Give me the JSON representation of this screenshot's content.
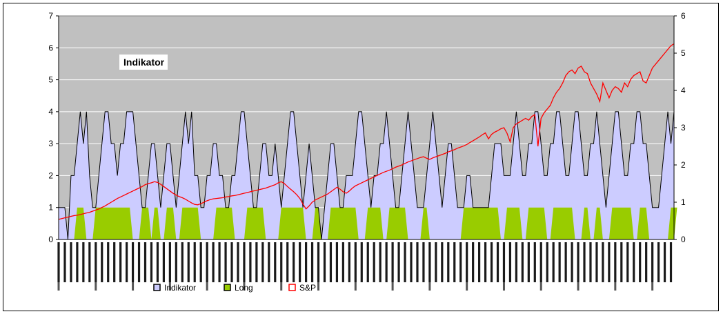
{
  "chart_data": {
    "type": "area",
    "title": "Indikator",
    "x_points": 200,
    "y_left_lim": [
      0,
      7
    ],
    "y_left_ticks": [
      "0",
      "1",
      "2",
      "3",
      "4",
      "5",
      "6",
      "7"
    ],
    "y_right_lim": [
      0,
      6
    ],
    "y_right_ticks": [
      "0",
      "1",
      "2",
      "3",
      "4",
      "5",
      "6"
    ],
    "grid": true,
    "legend_position": "bottom",
    "colors": {
      "plot_background": "#c0c0c0",
      "indikator_fill": "#ccccff",
      "indikator_line": "#000000",
      "long_fill": "#99cc00",
      "sp_line": "#ff0000",
      "grid": "#ffffff"
    },
    "series": [
      {
        "name": "Indikator",
        "type": "area",
        "axis": "left",
        "values": [
          1,
          1,
          1,
          0,
          2,
          2,
          3,
          4,
          3,
          4,
          2,
          1,
          1,
          2,
          3,
          4,
          4,
          3,
          3,
          2,
          3,
          3,
          4,
          4,
          4,
          3,
          2,
          1,
          1,
          2,
          3,
          3,
          2,
          1,
          2,
          3,
          3,
          2,
          1,
          2,
          3,
          4,
          3,
          4,
          2,
          2,
          1,
          1,
          2,
          2,
          3,
          3,
          2,
          2,
          1,
          1,
          2,
          2,
          3,
          4,
          4,
          3,
          2,
          1,
          1,
          2,
          3,
          3,
          2,
          2,
          3,
          2,
          1,
          2,
          3,
          4,
          4,
          3,
          2,
          1,
          2,
          3,
          2,
          1,
          1,
          0,
          1,
          2,
          3,
          3,
          2,
          1,
          1,
          2,
          2,
          2,
          3,
          4,
          4,
          3,
          2,
          1,
          2,
          2,
          3,
          3,
          4,
          3,
          2,
          1,
          1,
          2,
          3,
          4,
          3,
          2,
          1,
          1,
          1,
          2,
          3,
          4,
          3,
          2,
          1,
          2,
          3,
          3,
          2,
          1,
          1,
          1,
          2,
          2,
          1,
          1,
          1,
          1,
          1,
          1,
          2,
          3,
          3,
          3,
          2,
          2,
          2,
          3,
          4,
          3,
          2,
          2,
          3,
          3,
          4,
          4,
          3,
          2,
          2,
          3,
          3,
          4,
          4,
          3,
          2,
          2,
          3,
          4,
          4,
          3,
          2,
          2,
          3,
          3,
          4,
          3,
          2,
          1,
          2,
          3,
          4,
          4,
          3,
          2,
          2,
          3,
          3,
          4,
          4,
          3,
          3,
          2,
          1,
          1,
          1,
          2,
          3,
          4,
          3,
          4
        ]
      },
      {
        "name": "Long",
        "type": "area",
        "axis": "left",
        "values": [
          0,
          0,
          0,
          0,
          0,
          0,
          1,
          1,
          1,
          0,
          0,
          0,
          1,
          1,
          1,
          1,
          1,
          1,
          1,
          1,
          1,
          1,
          1,
          1,
          0,
          0,
          0,
          1,
          1,
          1,
          0,
          1,
          1,
          0,
          0,
          1,
          1,
          1,
          0,
          0,
          1,
          1,
          1,
          1,
          1,
          1,
          0,
          0,
          0,
          0,
          0,
          1,
          1,
          1,
          1,
          1,
          1,
          0,
          0,
          0,
          0,
          1,
          1,
          1,
          1,
          1,
          1,
          0,
          0,
          0,
          0,
          0,
          1,
          1,
          1,
          1,
          1,
          1,
          1,
          1,
          0,
          0,
          0,
          1,
          1,
          0,
          0,
          0,
          1,
          1,
          1,
          1,
          1,
          1,
          1,
          1,
          1,
          0,
          0,
          0,
          1,
          1,
          1,
          1,
          1,
          0,
          0,
          1,
          1,
          1,
          1,
          1,
          1,
          0,
          0,
          0,
          0,
          0,
          1,
          1,
          0,
          0,
          0,
          0,
          0,
          0,
          0,
          0,
          0,
          0,
          0,
          1,
          1,
          1,
          1,
          1,
          1,
          1,
          1,
          1,
          1,
          1,
          1,
          0,
          0,
          1,
          1,
          1,
          1,
          1,
          0,
          0,
          1,
          1,
          1,
          1,
          1,
          1,
          0,
          0,
          1,
          1,
          1,
          1,
          1,
          1,
          1,
          0,
          0,
          0,
          1,
          1,
          0,
          0,
          1,
          1,
          0,
          0,
          0,
          1,
          1,
          1,
          1,
          1,
          1,
          1,
          0,
          0,
          1,
          1,
          1,
          0,
          0,
          0,
          0,
          0,
          0,
          0,
          1,
          1,
          1
        ]
      },
      {
        "name": "S&P",
        "type": "line",
        "axis": "right",
        "values": [
          0.54,
          0.56,
          0.58,
          0.6,
          0.62,
          0.64,
          0.65,
          0.67,
          0.69,
          0.71,
          0.73,
          0.76,
          0.79,
          0.82,
          0.86,
          0.9,
          0.95,
          1.0,
          1.05,
          1.1,
          1.14,
          1.18,
          1.22,
          1.26,
          1.3,
          1.34,
          1.38,
          1.42,
          1.47,
          1.5,
          1.52,
          1.55,
          1.53,
          1.48,
          1.42,
          1.36,
          1.3,
          1.24,
          1.19,
          1.15,
          1.12,
          1.08,
          1.03,
          0.98,
          0.94,
          0.93,
          0.96,
          1.0,
          1.04,
          1.07,
          1.09,
          1.1,
          1.11,
          1.12,
          1.14,
          1.15,
          1.17,
          1.18,
          1.2,
          1.22,
          1.24,
          1.26,
          1.28,
          1.3,
          1.32,
          1.34,
          1.36,
          1.38,
          1.41,
          1.44,
          1.47,
          1.52,
          1.55,
          1.5,
          1.42,
          1.35,
          1.28,
          1.2,
          1.1,
          0.95,
          0.82,
          0.9,
          1.0,
          1.06,
          1.1,
          1.14,
          1.18,
          1.22,
          1.28,
          1.34,
          1.4,
          1.35,
          1.28,
          1.24,
          1.3,
          1.38,
          1.44,
          1.48,
          1.52,
          1.56,
          1.6,
          1.64,
          1.68,
          1.72,
          1.76,
          1.8,
          1.83,
          1.86,
          1.9,
          1.94,
          1.97,
          2.0,
          2.04,
          2.08,
          2.11,
          2.14,
          2.17,
          2.2,
          2.22,
          2.18,
          2.15,
          2.19,
          2.22,
          2.25,
          2.28,
          2.31,
          2.35,
          2.38,
          2.41,
          2.45,
          2.48,
          2.51,
          2.55,
          2.6,
          2.65,
          2.7,
          2.75,
          2.81,
          2.86,
          2.7,
          2.82,
          2.88,
          2.92,
          2.97,
          3.0,
          2.85,
          2.62,
          3.0,
          3.1,
          3.15,
          3.2,
          3.25,
          3.2,
          3.3,
          3.35,
          2.5,
          3.25,
          3.4,
          3.5,
          3.6,
          3.8,
          3.95,
          4.05,
          4.2,
          4.4,
          4.5,
          4.55,
          4.45,
          4.6,
          4.65,
          4.5,
          4.45,
          4.2,
          4.05,
          3.9,
          3.7,
          4.2,
          4.0,
          3.8,
          4.0,
          4.1,
          4.05,
          3.95,
          4.2,
          4.1,
          4.3,
          4.4,
          4.45,
          4.5,
          4.25,
          4.2,
          4.4,
          4.6,
          4.7,
          4.8,
          4.9,
          5.0,
          5.1,
          5.2,
          5.25
        ]
      }
    ],
    "legend": [
      {
        "label": "Indikator",
        "swatch": "#ccccff",
        "border": "#000000"
      },
      {
        "label": "Long",
        "swatch": "#99cc00",
        "border": "#000000"
      },
      {
        "label": "S&P",
        "swatch": "#ffffff",
        "border": "#ff0000"
      }
    ]
  }
}
